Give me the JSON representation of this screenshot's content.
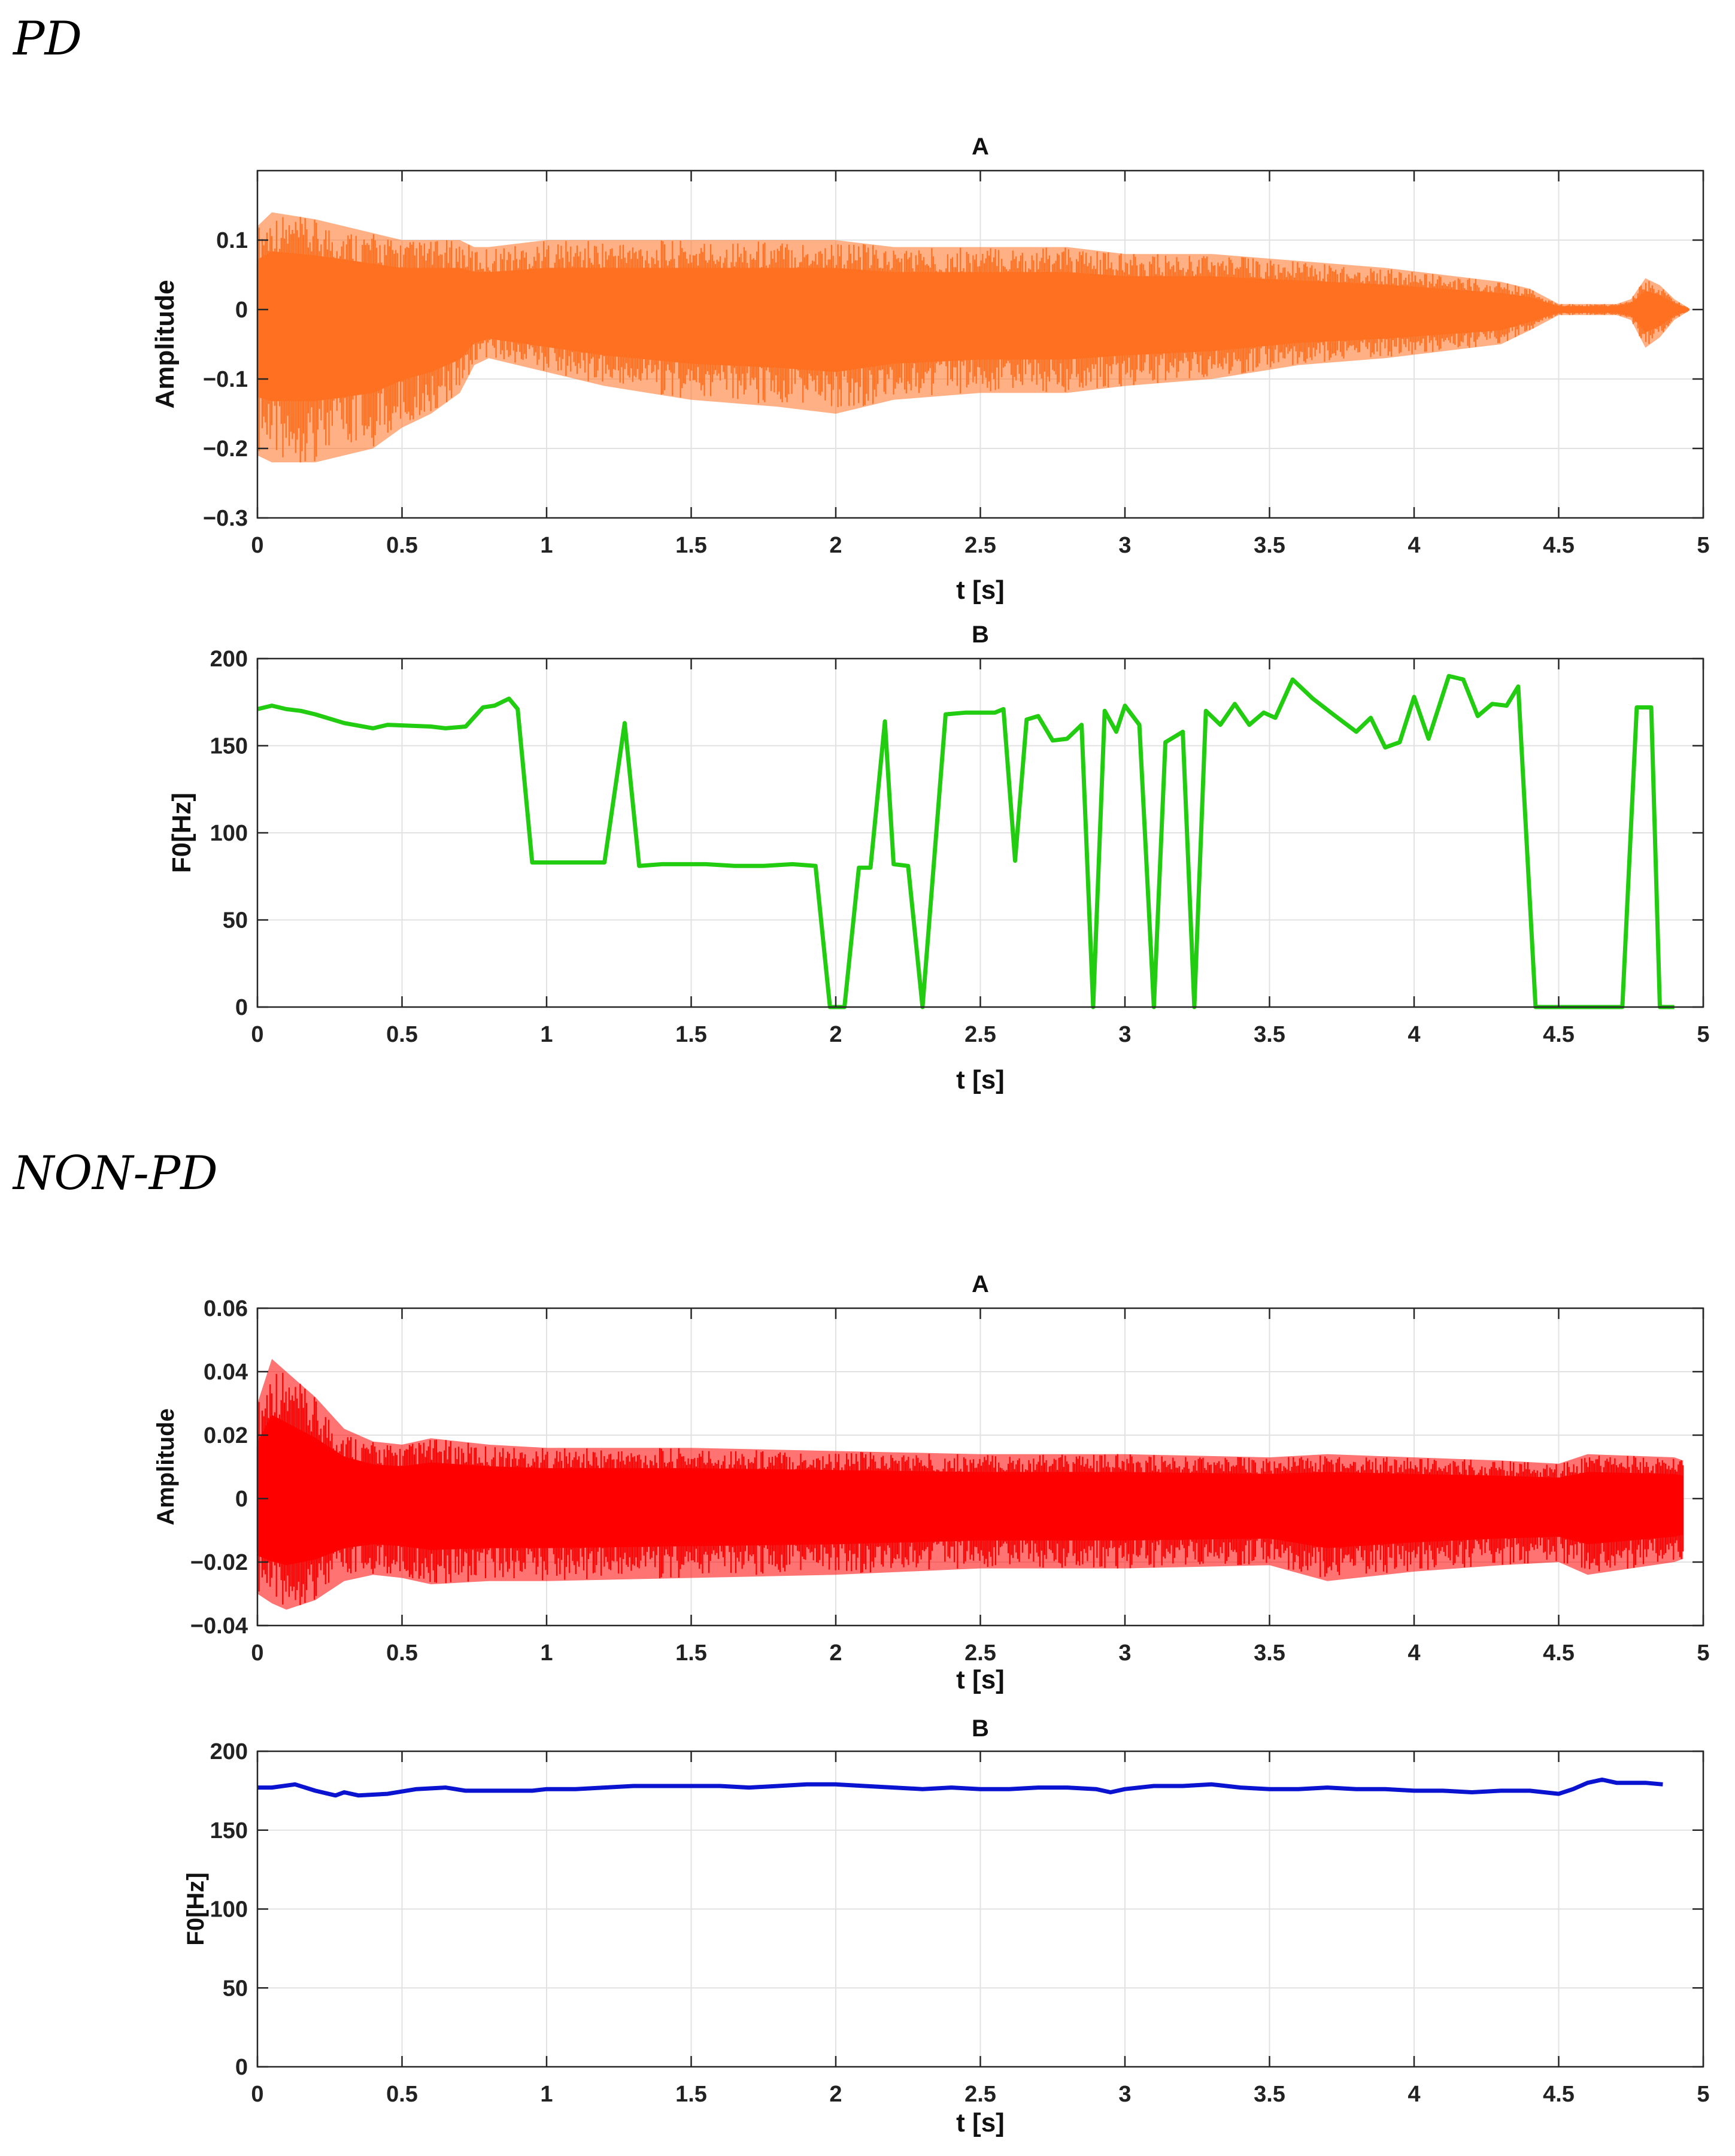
{
  "sections": {
    "pd_title": "PD",
    "nonpd_title": "NON-PD"
  },
  "chart_data": [
    {
      "id": "pd_amplitude",
      "section": "PD",
      "type": "area",
      "title": "A",
      "xlabel": "t [s]",
      "ylabel": "Amplitude",
      "xlim": [
        0,
        5
      ],
      "ylim": [
        -0.3,
        0.2
      ],
      "xticks": [
        0,
        0.5,
        1,
        1.5,
        2,
        2.5,
        3,
        3.5,
        4,
        4.5,
        5
      ],
      "xtick_labels": [
        "0",
        "0.5",
        "1",
        "1.5",
        "2",
        "2.5",
        "3",
        "3.5",
        "4",
        "4.5",
        "5"
      ],
      "yticks": [
        -0.3,
        -0.2,
        -0.1,
        0,
        0.1
      ],
      "ytick_labels": [
        "−0.3",
        "−0.2",
        "−0.1",
        "0",
        "0.1"
      ],
      "grid": true,
      "color": "#FF7020",
      "series": [
        {
          "name": "waveform envelope",
          "x": [
            0,
            0.05,
            0.2,
            0.4,
            0.5,
            0.6,
            0.7,
            0.75,
            0.8,
            1.0,
            1.2,
            1.5,
            1.8,
            2.0,
            2.2,
            2.5,
            2.8,
            3.0,
            3.3,
            3.6,
            3.9,
            4.1,
            4.3,
            4.4,
            4.5,
            4.6,
            4.7,
            4.75,
            4.8,
            4.85,
            4.9,
            4.95
          ],
          "upper": [
            0.12,
            0.14,
            0.13,
            0.11,
            0.1,
            0.1,
            0.1,
            0.09,
            0.09,
            0.1,
            0.1,
            0.1,
            0.1,
            0.1,
            0.09,
            0.09,
            0.09,
            0.08,
            0.08,
            0.07,
            0.06,
            0.05,
            0.04,
            0.03,
            0.008,
            0.008,
            0.008,
            0.015,
            0.045,
            0.035,
            0.015,
            0.002
          ],
          "lower": [
            -0.21,
            -0.22,
            -0.22,
            -0.2,
            -0.17,
            -0.15,
            -0.12,
            -0.08,
            -0.07,
            -0.09,
            -0.11,
            -0.13,
            -0.14,
            -0.15,
            -0.13,
            -0.12,
            -0.12,
            -0.11,
            -0.1,
            -0.08,
            -0.07,
            -0.06,
            -0.05,
            -0.03,
            -0.008,
            -0.008,
            -0.008,
            -0.015,
            -0.055,
            -0.04,
            -0.015,
            -0.002
          ]
        }
      ]
    },
    {
      "id": "pd_f0",
      "section": "PD",
      "type": "line",
      "title": "B",
      "xlabel": "t [s]",
      "ylabel": "F0[Hz]",
      "xlim": [
        0,
        5
      ],
      "ylim": [
        0,
        200
      ],
      "xticks": [
        0,
        0.5,
        1,
        1.5,
        2,
        2.5,
        3,
        3.5,
        4,
        4.5,
        5
      ],
      "xtick_labels": [
        "0",
        "0.5",
        "1",
        "1.5",
        "2",
        "2.5",
        "3",
        "3.5",
        "4",
        "4.5",
        "5"
      ],
      "yticks": [
        0,
        50,
        100,
        150,
        200
      ],
      "ytick_labels": [
        "0",
        "50",
        "100",
        "150",
        "200"
      ],
      "grid": true,
      "color": "#22CC10",
      "series": [
        {
          "name": "F0",
          "x": [
            0,
            0.05,
            0.1,
            0.15,
            0.2,
            0.3,
            0.4,
            0.45,
            0.6,
            0.65,
            0.72,
            0.78,
            0.82,
            0.87,
            0.9,
            0.95,
            1.1,
            1.2,
            1.27,
            1.32,
            1.4,
            1.5,
            1.55,
            1.65,
            1.75,
            1.85,
            1.93,
            1.98,
            2.03,
            2.08,
            2.12,
            2.17,
            2.2,
            2.25,
            2.3,
            2.38,
            2.45,
            2.55,
            2.58,
            2.62,
            2.66,
            2.7,
            2.75,
            2.8,
            2.85,
            2.89,
            2.93,
            2.97,
            3.0,
            3.05,
            3.1,
            3.14,
            3.2,
            3.24,
            3.28,
            3.33,
            3.38,
            3.43,
            3.48,
            3.52,
            3.58,
            3.65,
            3.72,
            3.8,
            3.85,
            3.9,
            3.95,
            4.0,
            4.05,
            4.12,
            4.17,
            4.22,
            4.27,
            4.32,
            4.36,
            4.42,
            4.5,
            4.6,
            4.72,
            4.77,
            4.82,
            4.85,
            4.9
          ],
          "values": [
            171,
            173,
            171,
            170,
            168,
            163,
            160,
            162,
            161,
            160,
            161,
            172,
            173,
            177,
            171,
            83,
            83,
            83,
            163,
            81,
            82,
            82,
            82,
            81,
            81,
            82,
            81,
            0,
            0,
            80,
            80,
            164,
            82,
            81,
            0,
            168,
            169,
            169,
            171,
            84,
            165,
            167,
            153,
            154,
            162,
            0,
            170,
            158,
            173,
            162,
            0,
            152,
            158,
            0,
            170,
            162,
            174,
            162,
            169,
            166,
            188,
            177,
            168,
            158,
            166,
            149,
            152,
            178,
            154,
            190,
            188,
            167,
            174,
            173,
            184,
            0,
            0,
            0,
            0,
            172,
            172,
            0,
            0
          ]
        }
      ]
    },
    {
      "id": "nonpd_amplitude",
      "section": "NON-PD",
      "type": "area",
      "title": "A",
      "xlabel": "t [s]",
      "ylabel": "Amplitude",
      "xlim": [
        0,
        5
      ],
      "ylim": [
        -0.04,
        0.06
      ],
      "xticks": [
        0,
        0.5,
        1,
        1.5,
        2,
        2.5,
        3,
        3.5,
        4,
        4.5,
        5
      ],
      "xtick_labels": [
        "0",
        "0.5",
        "1",
        "1.5",
        "2",
        "2.5",
        "3",
        "3.5",
        "4",
        "4.5",
        "5"
      ],
      "yticks": [
        -0.04,
        -0.02,
        0,
        0.02,
        0.04,
        0.06
      ],
      "ytick_labels": [
        "−0.04",
        "−0.02",
        "0",
        "0.02",
        "0.04",
        "0.06"
      ],
      "grid": true,
      "color": "#FF0000",
      "series": [
        {
          "name": "waveform envelope",
          "x": [
            0,
            0.05,
            0.1,
            0.2,
            0.3,
            0.4,
            0.5,
            0.6,
            0.8,
            1.0,
            1.5,
            2.0,
            2.5,
            3.0,
            3.5,
            3.7,
            4.0,
            4.3,
            4.5,
            4.6,
            4.9,
            4.93
          ],
          "upper": [
            0.03,
            0.044,
            0.04,
            0.032,
            0.022,
            0.018,
            0.017,
            0.019,
            0.017,
            0.016,
            0.016,
            0.015,
            0.014,
            0.014,
            0.013,
            0.014,
            0.013,
            0.012,
            0.011,
            0.014,
            0.013,
            0.012
          ],
          "lower": [
            -0.03,
            -0.033,
            -0.035,
            -0.032,
            -0.026,
            -0.024,
            -0.025,
            -0.027,
            -0.026,
            -0.026,
            -0.025,
            -0.024,
            -0.022,
            -0.022,
            -0.021,
            -0.026,
            -0.023,
            -0.021,
            -0.02,
            -0.024,
            -0.02,
            -0.019
          ]
        }
      ]
    },
    {
      "id": "nonpd_f0",
      "section": "NON-PD",
      "type": "line",
      "title": "B",
      "xlabel": "t [s]",
      "ylabel": "F0[Hz]",
      "xlim": [
        0,
        5
      ],
      "ylim": [
        0,
        200
      ],
      "xticks": [
        0,
        0.5,
        1,
        1.5,
        2,
        2.5,
        3,
        3.5,
        4,
        4.5,
        5
      ],
      "xtick_labels": [
        "0",
        "0.5",
        "1",
        "1.5",
        "2",
        "2.5",
        "3",
        "3.5",
        "4",
        "4.5",
        "5"
      ],
      "yticks": [
        0,
        50,
        100,
        150,
        200
      ],
      "ytick_labels": [
        "0",
        "50",
        "100",
        "150",
        "200"
      ],
      "grid": true,
      "color": "#0A14D0",
      "series": [
        {
          "name": "F0",
          "x": [
            0,
            0.05,
            0.13,
            0.2,
            0.27,
            0.3,
            0.35,
            0.45,
            0.55,
            0.65,
            0.72,
            0.85,
            0.95,
            1.0,
            1.1,
            1.2,
            1.3,
            1.4,
            1.5,
            1.6,
            1.7,
            1.8,
            1.9,
            2.0,
            2.1,
            2.2,
            2.3,
            2.4,
            2.5,
            2.6,
            2.7,
            2.8,
            2.9,
            2.95,
            3.0,
            3.1,
            3.2,
            3.3,
            3.4,
            3.5,
            3.6,
            3.7,
            3.8,
            3.9,
            4.0,
            4.1,
            4.2,
            4.3,
            4.4,
            4.5,
            4.55,
            4.6,
            4.65,
            4.7,
            4.8,
            4.86
          ],
          "values": [
            177,
            177,
            179,
            175,
            172,
            174,
            172,
            173,
            176,
            177,
            175,
            175,
            175,
            176,
            176,
            177,
            178,
            178,
            178,
            178,
            177,
            178,
            179,
            179,
            178,
            177,
            176,
            177,
            176,
            176,
            177,
            177,
            176,
            174,
            176,
            178,
            178,
            179,
            177,
            176,
            176,
            177,
            176,
            176,
            175,
            175,
            174,
            175,
            175,
            173,
            176,
            180,
            182,
            180,
            180,
            179
          ]
        }
      ]
    }
  ]
}
